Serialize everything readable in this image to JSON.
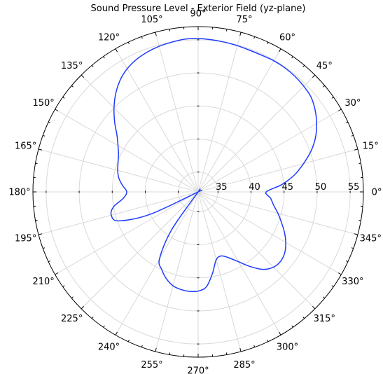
{
  "chart_data": {
    "type": "line",
    "subtype": "polar",
    "title": "Sound Pressure Level - Exterior Field (yz-plane)",
    "radial_axis": {
      "min": 32,
      "max": 57,
      "tick_values": [
        35,
        40,
        45,
        50,
        55
      ],
      "tick_labels": [
        "35",
        "40",
        "45",
        "50",
        "55"
      ]
    },
    "angular_axis": {
      "unit": "deg",
      "direction": "counterclockwise",
      "zero": "right",
      "tick_values": [
        0,
        15,
        30,
        45,
        60,
        75,
        90,
        105,
        120,
        135,
        150,
        165,
        180,
        195,
        210,
        225,
        240,
        255,
        270,
        285,
        300,
        315,
        330,
        345
      ],
      "tick_labels": [
        "0°",
        "15°",
        "30°",
        "45°",
        "60°",
        "75°",
        "90°",
        "105°",
        "120°",
        "135°",
        "150°",
        "165°",
        "180°",
        "195°",
        "210°",
        "225°",
        "240°",
        "255°",
        "270°",
        "285°",
        "300°",
        "315°",
        "330°",
        "345°"
      ]
    },
    "grid": true,
    "series": [
      {
        "color": "#1f3cff",
        "theta": [
          0,
          5,
          10,
          15,
          20,
          25,
          30,
          35,
          40,
          45,
          50,
          55,
          60,
          65,
          70,
          75,
          80,
          85,
          90,
          95,
          100,
          105,
          110,
          115,
          120,
          125,
          130,
          135,
          140,
          145,
          150,
          155,
          160,
          165,
          170,
          175,
          180,
          185,
          190,
          195,
          200,
          205,
          210,
          215,
          220,
          225,
          230,
          235,
          240,
          245,
          250,
          255,
          260,
          265,
          270,
          275,
          280,
          285,
          290,
          295,
          300,
          305,
          310,
          315,
          320,
          325,
          330,
          335,
          340,
          345,
          350,
          355
        ],
        "r": [
          42.3,
          44.7,
          46.8,
          48.5,
          50.2,
          51.6,
          52.7,
          53.6,
          54.3,
          54.6,
          54.8,
          54.9,
          54.9,
          54.8,
          54.8,
          54.9,
          55.0,
          55.1,
          55.2,
          55.2,
          55.0,
          54.8,
          54.5,
          54.1,
          53.5,
          52.6,
          51.4,
          50.0,
          48.5,
          47.0,
          46.0,
          45.3,
          44.9,
          44.6,
          44.2,
          43.5,
          42.8,
          43.4,
          45.0,
          45.6,
          44.8,
          40.0,
          32.0,
          32.0,
          32.0,
          32.0,
          32.0,
          39.0,
          43.7,
          45.0,
          46.0,
          46.7,
          47.0,
          47.1,
          47.0,
          46.4,
          44.5,
          42.6,
          42.3,
          43.0,
          44.2,
          45.8,
          47.3,
          48.1,
          48.3,
          48.0,
          47.3,
          46.4,
          45.4,
          44.5,
          43.6,
          43.0
        ]
      }
    ]
  }
}
